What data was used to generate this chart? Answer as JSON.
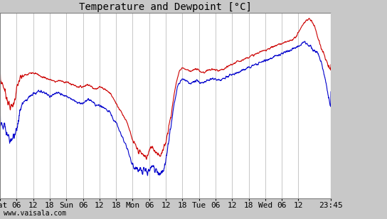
{
  "title": "Temperature and Dewpoint [°C]",
  "watermark": "www.vaisala.com",
  "bg_color": "#c8c8c8",
  "plot_bg_color": "#ffffff",
  "grid_color": "#b0b0b0",
  "temp_color": "#cc0000",
  "dewpoint_color": "#0000cc",
  "line_width": 0.8,
  "title_fontsize": 10,
  "tick_fontsize": 8,
  "ylim_bottom": -32,
  "ylim_top": 7,
  "yticks": [
    5,
    0,
    -5,
    -10,
    -15,
    -20,
    -25,
    -30
  ],
  "x_tick_positions": [
    0,
    6,
    12,
    18,
    24,
    30,
    36,
    42,
    48,
    54,
    60,
    66,
    72,
    78,
    84,
    90,
    96,
    102,
    108,
    119.75
  ],
  "x_tick_labels": [
    "Sat",
    "06",
    "12",
    "18",
    "Sun",
    "06",
    "12",
    "18",
    "Mon",
    "06",
    "12",
    "18",
    "Tue",
    "06",
    "12",
    "18",
    "Wed",
    "06",
    "12",
    "23:45"
  ],
  "xlim": [
    0,
    119.75
  ],
  "temp_keyframes": [
    [
      0,
      -7
    ],
    [
      1,
      -8
    ],
    [
      2,
      -10
    ],
    [
      3,
      -12
    ],
    [
      4,
      -13
    ],
    [
      5,
      -12
    ],
    [
      6,
      -9
    ],
    [
      7,
      -7
    ],
    [
      8,
      -6.5
    ],
    [
      9,
      -6
    ],
    [
      10,
      -6
    ],
    [
      11,
      -5.5
    ],
    [
      12,
      -5.5
    ],
    [
      13,
      -5.8
    ],
    [
      14,
      -6
    ],
    [
      15,
      -6.5
    ],
    [
      16,
      -6.5
    ],
    [
      17,
      -6.8
    ],
    [
      18,
      -7
    ],
    [
      19,
      -7.2
    ],
    [
      20,
      -7.5
    ],
    [
      21,
      -7.2
    ],
    [
      22,
      -7.3
    ],
    [
      23,
      -7.5
    ],
    [
      24,
      -7.5
    ],
    [
      25,
      -7.8
    ],
    [
      26,
      -8
    ],
    [
      27,
      -8.2
    ],
    [
      28,
      -8.5
    ],
    [
      29,
      -8.5
    ],
    [
      30,
      -8.5
    ],
    [
      31,
      -8.2
    ],
    [
      32,
      -8
    ],
    [
      33,
      -8.5
    ],
    [
      34,
      -9
    ],
    [
      35,
      -8.8
    ],
    [
      36,
      -8.5
    ],
    [
      37,
      -8.8
    ],
    [
      38,
      -9
    ],
    [
      39,
      -9.5
    ],
    [
      40,
      -10
    ],
    [
      41,
      -11
    ],
    [
      42,
      -12
    ],
    [
      43,
      -13
    ],
    [
      44,
      -14
    ],
    [
      45,
      -15
    ],
    [
      46,
      -16
    ],
    [
      47,
      -18
    ],
    [
      48,
      -20
    ],
    [
      49,
      -21
    ],
    [
      50,
      -22
    ],
    [
      51,
      -22.5
    ],
    [
      52,
      -23
    ],
    [
      53,
      -23.5
    ],
    [
      54,
      -22
    ],
    [
      55,
      -21
    ],
    [
      56,
      -22
    ],
    [
      57,
      -22.5
    ],
    [
      58,
      -23
    ],
    [
      59,
      -22
    ],
    [
      60,
      -20
    ],
    [
      61,
      -17
    ],
    [
      62,
      -14
    ],
    [
      63,
      -10
    ],
    [
      64,
      -7
    ],
    [
      65,
      -5
    ],
    [
      66,
      -4.5
    ],
    [
      67,
      -4.8
    ],
    [
      68,
      -5
    ],
    [
      69,
      -5.2
    ],
    [
      70,
      -5
    ],
    [
      71,
      -4.8
    ],
    [
      72,
      -5
    ],
    [
      73,
      -5.5
    ],
    [
      74,
      -5.5
    ],
    [
      75,
      -5
    ],
    [
      76,
      -5
    ],
    [
      77,
      -4.8
    ],
    [
      78,
      -5
    ],
    [
      79,
      -5.2
    ],
    [
      80,
      -5
    ],
    [
      81,
      -4.8
    ],
    [
      82,
      -4.5
    ],
    [
      83,
      -4
    ],
    [
      84,
      -3.8
    ],
    [
      85,
      -3.5
    ],
    [
      86,
      -3.2
    ],
    [
      87,
      -3
    ],
    [
      88,
      -2.8
    ],
    [
      89,
      -2.5
    ],
    [
      90,
      -2.2
    ],
    [
      91,
      -2
    ],
    [
      92,
      -1.8
    ],
    [
      93,
      -1.5
    ],
    [
      94,
      -1.2
    ],
    [
      95,
      -1
    ],
    [
      96,
      -0.8
    ],
    [
      97,
      -0.5
    ],
    [
      98,
      -0.3
    ],
    [
      99,
      0
    ],
    [
      100,
      0.2
    ],
    [
      101,
      0.5
    ],
    [
      102,
      0.5
    ],
    [
      103,
      0.8
    ],
    [
      104,
      1
    ],
    [
      105,
      1.2
    ],
    [
      106,
      1.5
    ],
    [
      107,
      2
    ],
    [
      108,
      3
    ],
    [
      109,
      4
    ],
    [
      110,
      5
    ],
    [
      111,
      5.5
    ],
    [
      112,
      5.8
    ],
    [
      113,
      5.2
    ],
    [
      114,
      4
    ],
    [
      115,
      2
    ],
    [
      116,
      0
    ],
    [
      117,
      -1.5
    ],
    [
      118,
      -3
    ],
    [
      119,
      -4.5
    ],
    [
      119.75,
      -5
    ]
  ],
  "dew_keyframes": [
    [
      0,
      -16
    ],
    [
      1,
      -17
    ],
    [
      2,
      -18
    ],
    [
      3,
      -19
    ],
    [
      4,
      -20
    ],
    [
      5,
      -19
    ],
    [
      6,
      -17
    ],
    [
      7,
      -14
    ],
    [
      8,
      -12
    ],
    [
      9,
      -11.5
    ],
    [
      10,
      -11
    ],
    [
      11,
      -10.5
    ],
    [
      12,
      -10
    ],
    [
      13,
      -9.8
    ],
    [
      14,
      -9.5
    ],
    [
      15,
      -9.5
    ],
    [
      16,
      -9.8
    ],
    [
      17,
      -10
    ],
    [
      18,
      -10.5
    ],
    [
      19,
      -10.2
    ],
    [
      20,
      -10
    ],
    [
      21,
      -9.8
    ],
    [
      22,
      -10
    ],
    [
      23,
      -10.2
    ],
    [
      24,
      -10.5
    ],
    [
      25,
      -10.8
    ],
    [
      26,
      -11
    ],
    [
      27,
      -11.5
    ],
    [
      28,
      -11.8
    ],
    [
      29,
      -12
    ],
    [
      30,
      -12
    ],
    [
      31,
      -11.5
    ],
    [
      32,
      -11
    ],
    [
      33,
      -11.5
    ],
    [
      34,
      -12
    ],
    [
      35,
      -12.5
    ],
    [
      36,
      -12.5
    ],
    [
      37,
      -12.8
    ],
    [
      38,
      -13
    ],
    [
      39,
      -13.5
    ],
    [
      40,
      -14
    ],
    [
      41,
      -15.5
    ],
    [
      42,
      -16
    ],
    [
      43,
      -17.5
    ],
    [
      44,
      -19
    ],
    [
      45,
      -20
    ],
    [
      46,
      -21.5
    ],
    [
      47,
      -23.5
    ],
    [
      48,
      -25
    ],
    [
      49,
      -25.5
    ],
    [
      50,
      -25.8
    ],
    [
      51,
      -26
    ],
    [
      52,
      -26.2
    ],
    [
      53,
      -26.5
    ],
    [
      54,
      -26
    ],
    [
      55,
      -25.5
    ],
    [
      56,
      -26
    ],
    [
      57,
      -26.5
    ],
    [
      58,
      -27
    ],
    [
      59,
      -26.5
    ],
    [
      60,
      -24
    ],
    [
      61,
      -20
    ],
    [
      62,
      -16
    ],
    [
      63,
      -12
    ],
    [
      64,
      -9
    ],
    [
      65,
      -7.5
    ],
    [
      66,
      -7
    ],
    [
      67,
      -7.2
    ],
    [
      68,
      -7.5
    ],
    [
      69,
      -7.8
    ],
    [
      70,
      -7.5
    ],
    [
      71,
      -7.2
    ],
    [
      72,
      -7.5
    ],
    [
      73,
      -7.8
    ],
    [
      74,
      -7.5
    ],
    [
      75,
      -7.2
    ],
    [
      76,
      -7
    ],
    [
      77,
      -6.8
    ],
    [
      78,
      -7
    ],
    [
      79,
      -7.2
    ],
    [
      80,
      -7
    ],
    [
      81,
      -6.8
    ],
    [
      82,
      -6.5
    ],
    [
      83,
      -6.2
    ],
    [
      84,
      -6
    ],
    [
      85,
      -5.8
    ],
    [
      86,
      -5.5
    ],
    [
      87,
      -5.2
    ],
    [
      88,
      -5
    ],
    [
      89,
      -4.8
    ],
    [
      90,
      -4.5
    ],
    [
      91,
      -4.2
    ],
    [
      92,
      -4
    ],
    [
      93,
      -3.8
    ],
    [
      94,
      -3.5
    ],
    [
      95,
      -3.2
    ],
    [
      96,
      -3
    ],
    [
      97,
      -2.8
    ],
    [
      98,
      -2.5
    ],
    [
      99,
      -2.2
    ],
    [
      100,
      -2
    ],
    [
      101,
      -1.8
    ],
    [
      102,
      -1.5
    ],
    [
      103,
      -1.2
    ],
    [
      104,
      -1
    ],
    [
      105,
      -0.8
    ],
    [
      106,
      -0.5
    ],
    [
      107,
      -0.2
    ],
    [
      108,
      0
    ],
    [
      109,
      0.5
    ],
    [
      110,
      1
    ],
    [
      111,
      0.5
    ],
    [
      112,
      0
    ],
    [
      113,
      -0.5
    ],
    [
      114,
      -1
    ],
    [
      115,
      -1.5
    ],
    [
      116,
      -3
    ],
    [
      117,
      -5
    ],
    [
      118,
      -8
    ],
    [
      119,
      -11
    ],
    [
      119.75,
      -13
    ]
  ]
}
